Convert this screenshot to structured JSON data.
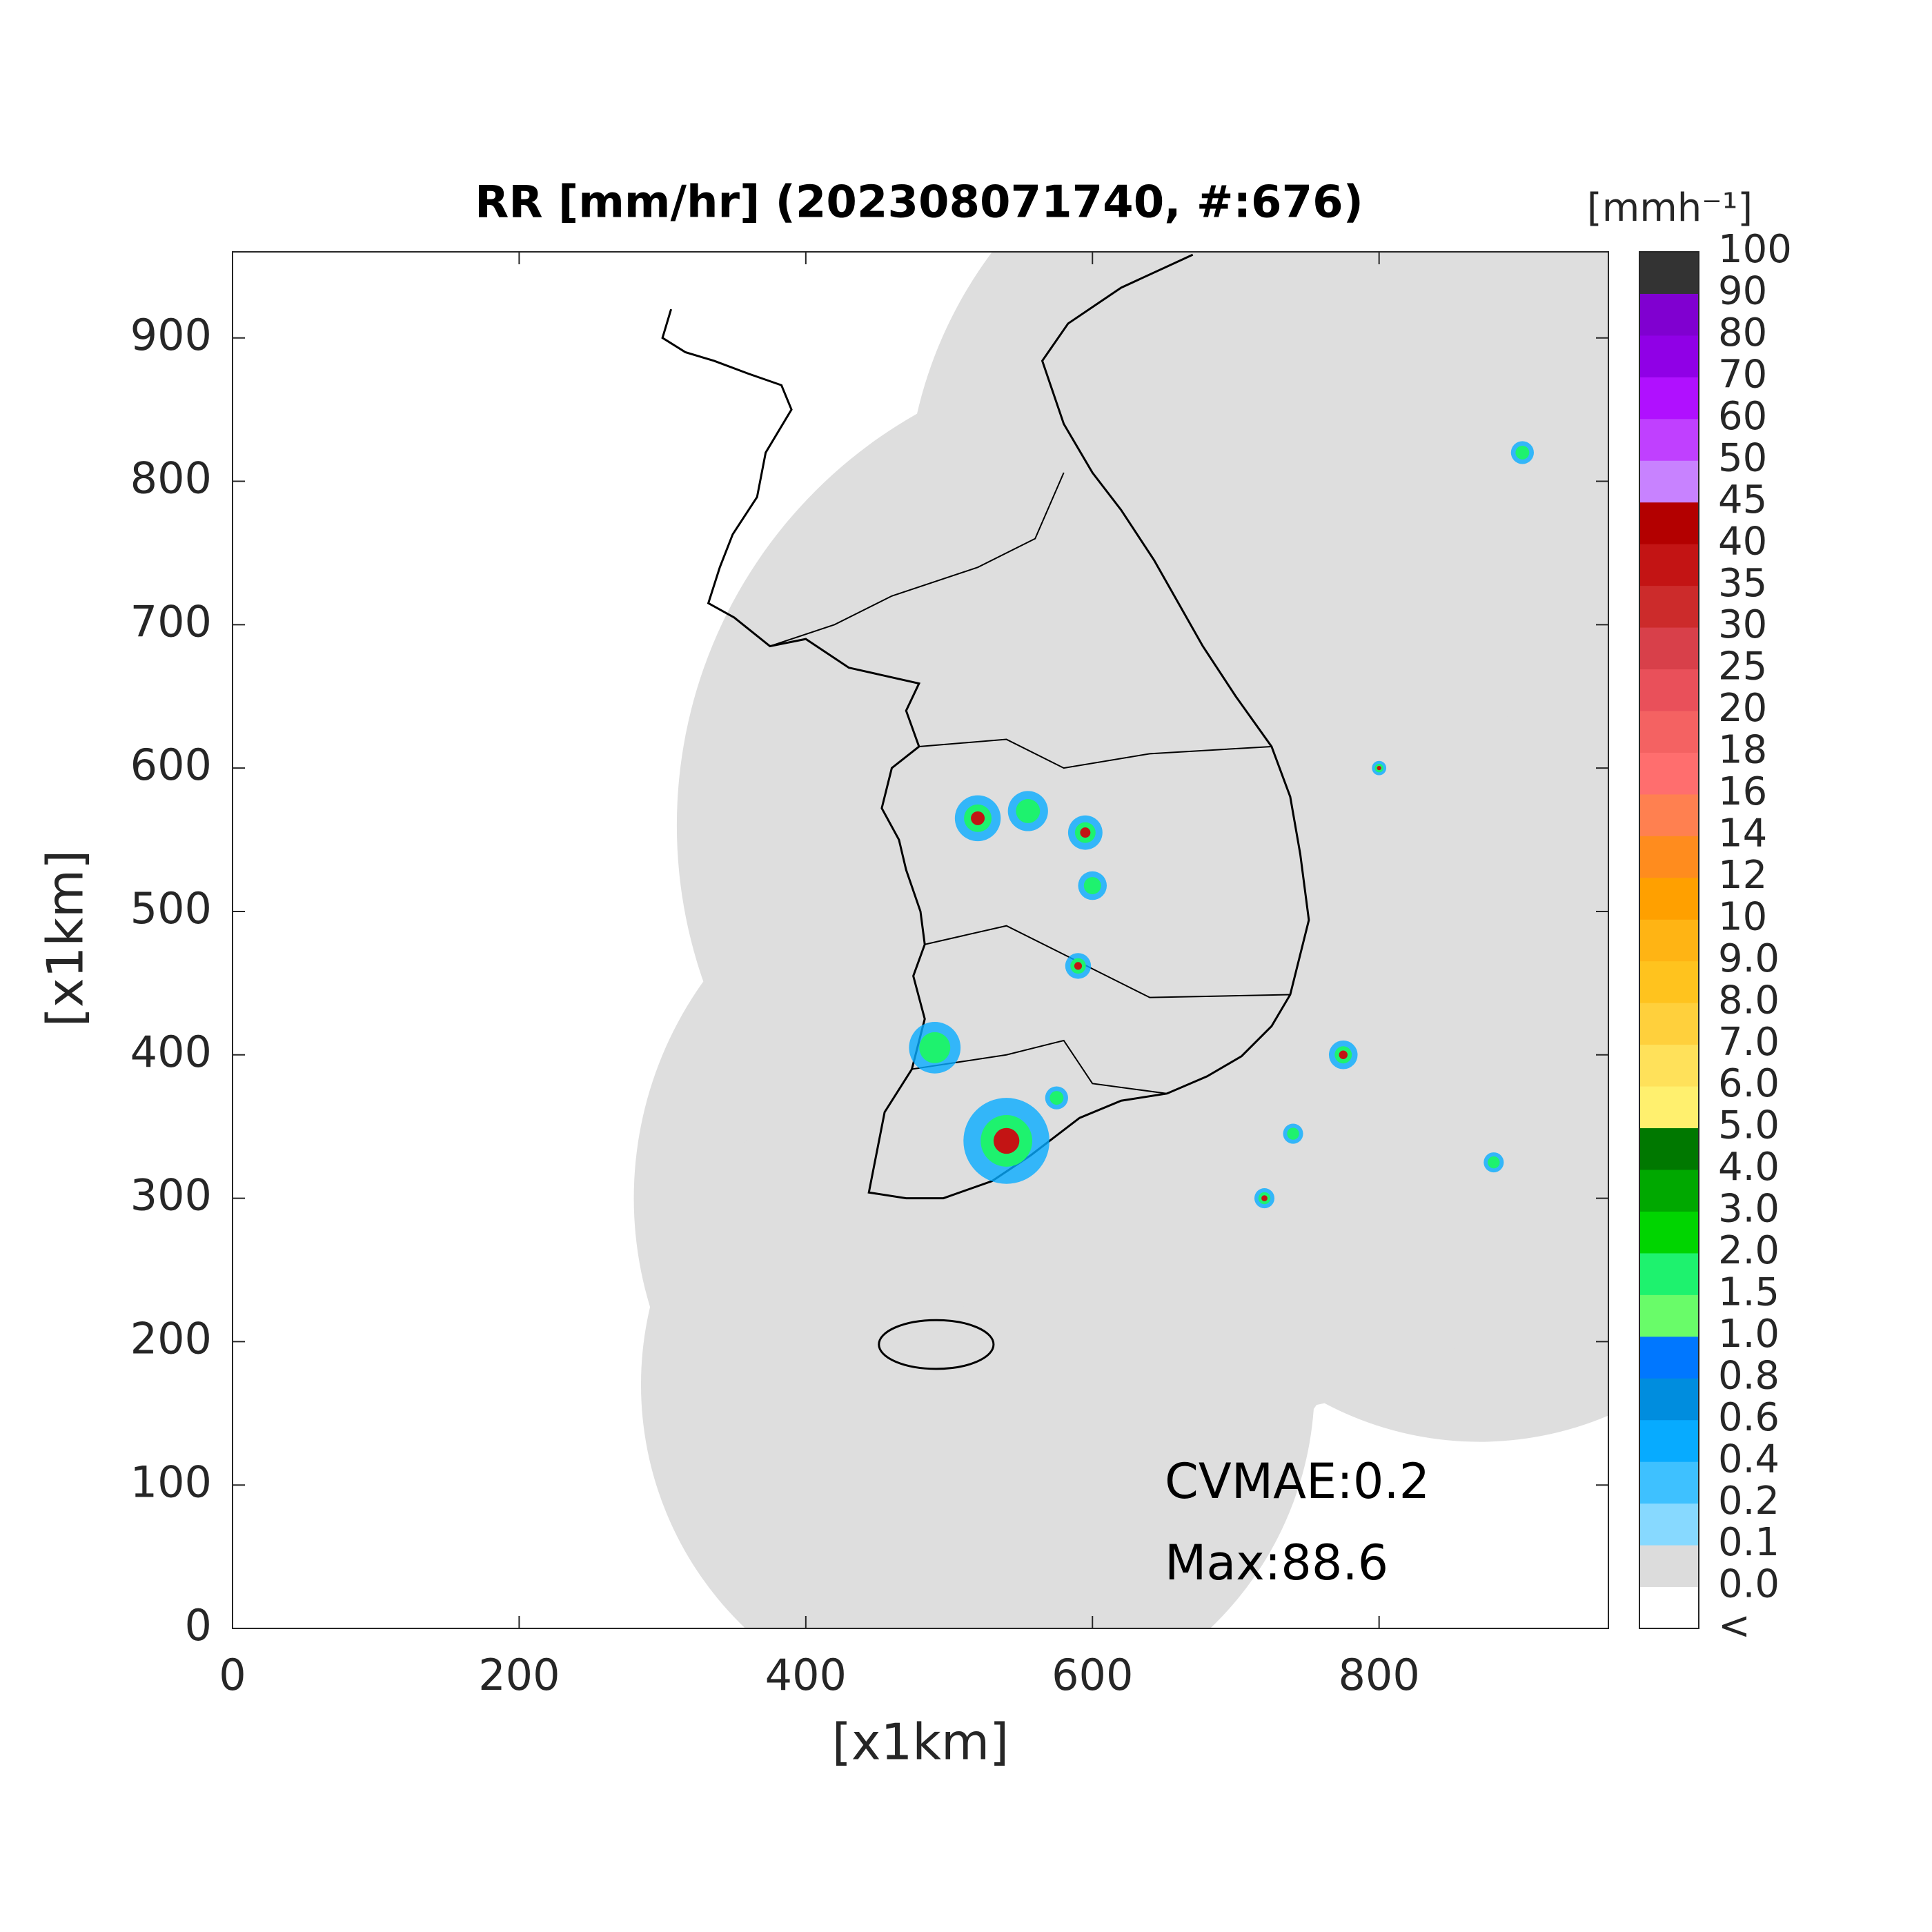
{
  "chart_data": {
    "type": "heatmap",
    "title": "RR [mm/hr] (202308071740, #:676)",
    "xlabel": "[x1km]",
    "ylabel": "[x1km]",
    "xlim": [
      0,
      960
    ],
    "ylim": [
      0,
      960
    ],
    "xticks": [
      0,
      200,
      400,
      600,
      800
    ],
    "yticks": [
      0,
      100,
      200,
      300,
      400,
      500,
      600,
      700,
      800,
      900
    ],
    "annotations": [
      "CVMAE:0.2",
      "Max:88.6"
    ],
    "colorbar": {
      "label": "[mmh⁻¹]",
      "labels": [
        "<",
        "0.0",
        "0.1",
        "0.2",
        "0.4",
        "0.6",
        "0.8",
        "1.0",
        "1.5",
        "2.0",
        "3.0",
        "4.0",
        "5.0",
        "6.0",
        "7.0",
        "8.0",
        "9.0",
        "10",
        "12",
        "14",
        "16",
        "18",
        "20",
        "25",
        "30",
        "35",
        "40",
        "45",
        "50",
        "60",
        "70",
        "80",
        "90",
        "100"
      ],
      "colors": [
        "#ffffff",
        "#dcdcdc",
        "#87d9ff",
        "#3ec1ff",
        "#07abff",
        "#008dde",
        "#0077ff",
        "#69fc69",
        "#1ef26e",
        "#00d500",
        "#00a800",
        "#007800",
        "#fff06e",
        "#ffe15a",
        "#ffd03c",
        "#ffc31e",
        "#ffb414",
        "#ffa000",
        "#ff8c1e",
        "#ff8050",
        "#ff6e6e",
        "#f46262",
        "#e9505a",
        "#d8404a",
        "#cc2b2b",
        "#c31414",
        "#b30000",
        "#c882ff",
        "#c040ff",
        "#b010ff",
        "#9000e6",
        "#8000d0",
        "#333333"
      ]
    }
  }
}
